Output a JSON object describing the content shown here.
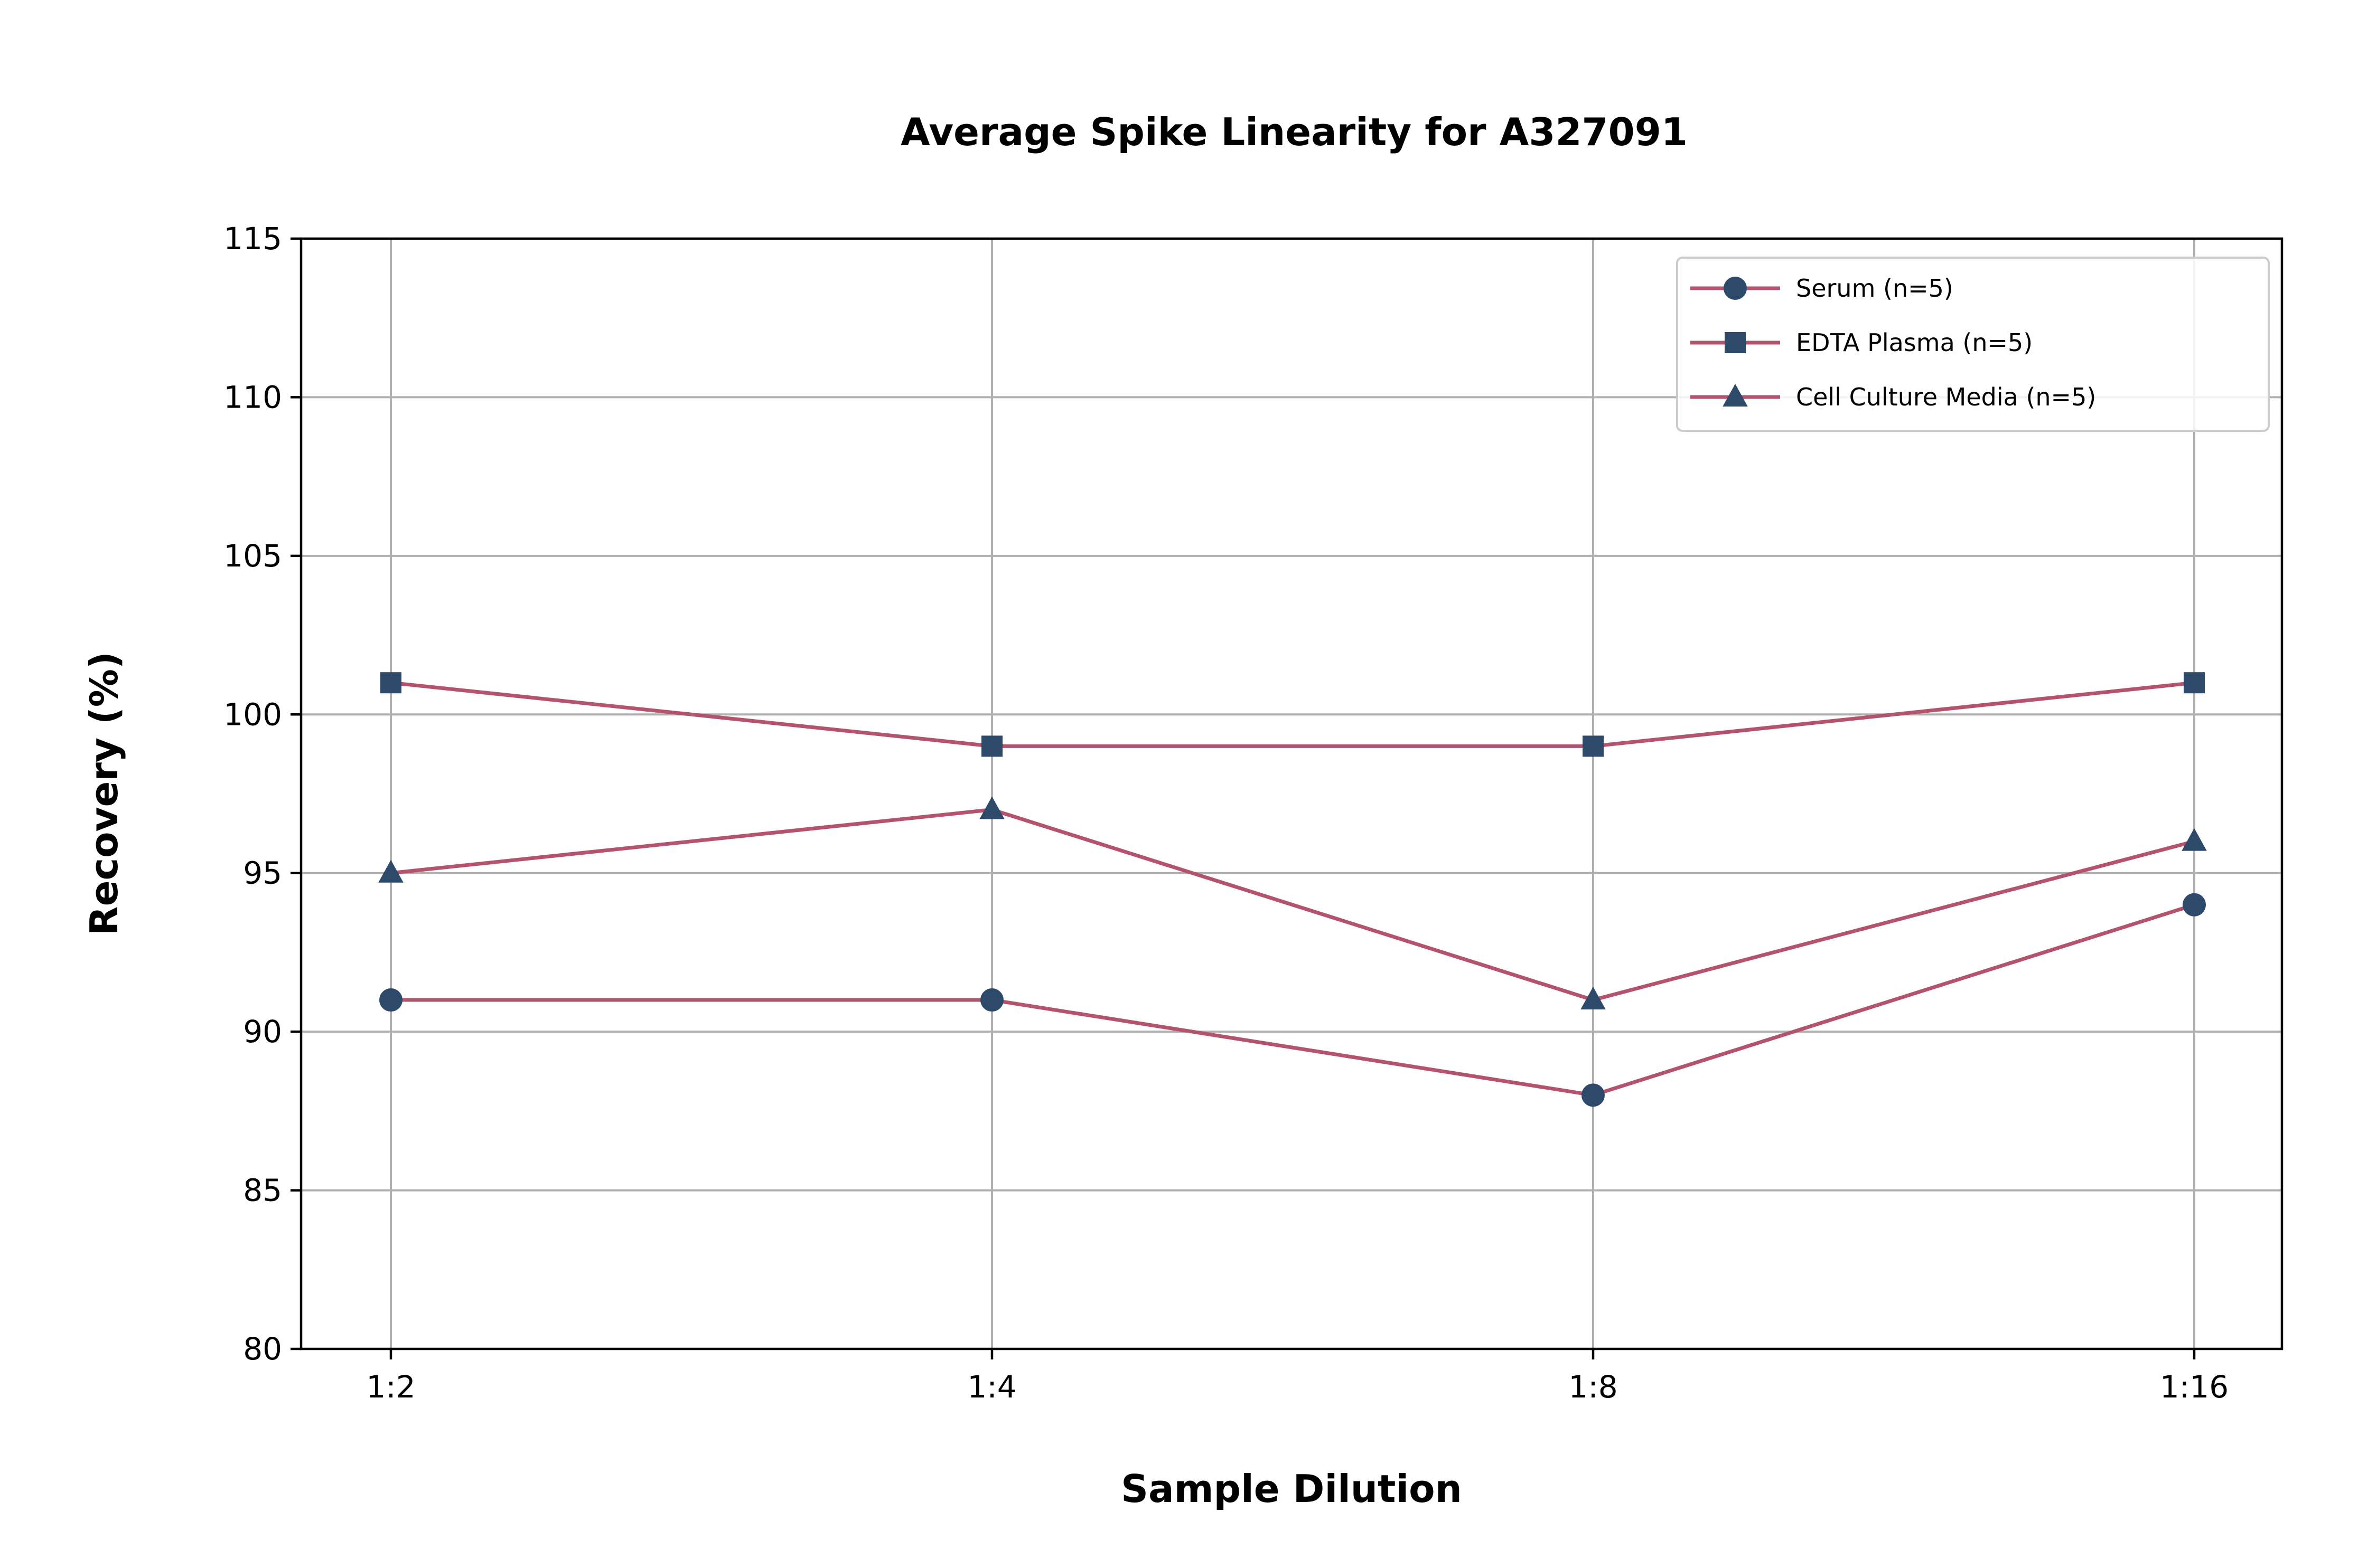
{
  "chart_data": {
    "type": "line",
    "title": "Average Spike Linearity for A327091",
    "xlabel": "Sample Dilution",
    "ylabel": "Recovery (%)",
    "categories": [
      "1:2",
      "1:4",
      "1:8",
      "1:16"
    ],
    "ylim": [
      80,
      115
    ],
    "yticks": [
      80,
      85,
      90,
      95,
      100,
      105,
      110,
      115
    ],
    "grid": true,
    "legend_position": "top-right",
    "line_color": "#b5536f",
    "marker_color": "#2e4a6b",
    "series": [
      {
        "name": "Serum (n=5)",
        "marker": "circle",
        "values": [
          91,
          91,
          88,
          94
        ]
      },
      {
        "name": "EDTA Plasma (n=5)",
        "marker": "square",
        "values": [
          101,
          99,
          99,
          101
        ]
      },
      {
        "name": "Cell Culture Media (n=5)",
        "marker": "triangle",
        "values": [
          95,
          97,
          91,
          96
        ]
      }
    ]
  }
}
